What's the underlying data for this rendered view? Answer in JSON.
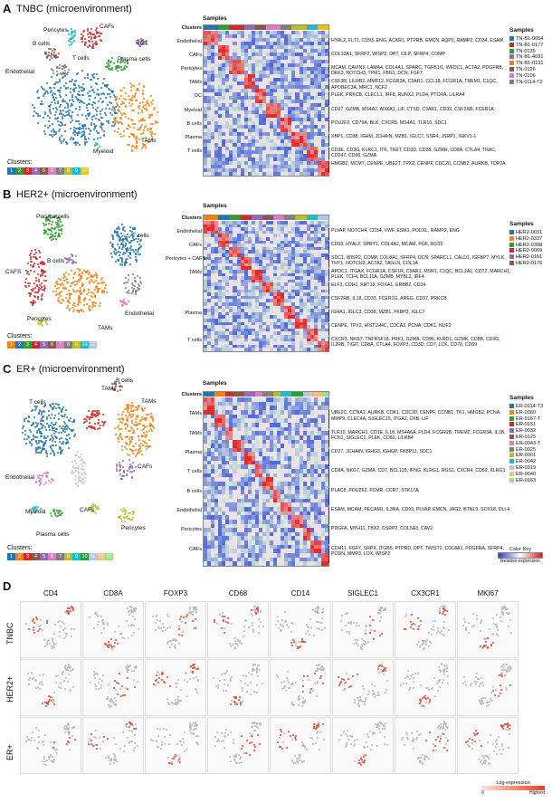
{
  "panels": {
    "A": {
      "letter": "A",
      "title": "TNBC (microenvironment)",
      "cluster_labels": [
        "Pericytes",
        "CAFs",
        "DCs",
        "B cells",
        "T cells",
        "Plasma cells",
        "Endothelial",
        "Myeloid",
        "TAMs"
      ],
      "clusters_title": "Clusters:",
      "cluster_ids": [
        "1",
        "2",
        "3",
        "4",
        "5",
        "6",
        "7",
        "8",
        "9",
        "10"
      ],
      "cluster_colors": [
        "#1f77b4",
        "#2ca02c",
        "#d62728",
        "#9467bd",
        "#8c564b",
        "#e377c2",
        "#7f7f7f",
        "#bcbd22",
        "#17becf",
        "#ffbf00"
      ],
      "heatmap_rows": [
        {
          "label": "Clusters",
          "genes": ""
        },
        {
          "label": "Endothelial",
          "genes": "HYAL2, FLT1, CD93, ENG, ACKR1, PTPRB, EMCN, AQP1, RAMP2, CD34, ESAM"
        },
        {
          "label": "CAFs",
          "genes": "COL10A1, SFRP2, WISP2, DPT, CILP, SFRP4, COMP"
        },
        {
          "label": "Pericytes",
          "genes": "MCAM, CAVIN3, LAMA4, COL4A1, SPARC, TGFB1I1, WFDC1, ACTA2, PDGFRB, DKK3, NOTCH3, TPM1, FBN1, DCN, FGF7"
        },
        {
          "label": "TAMs",
          "genes": "CSF3R, LILRB2, MMP12, FCGR3A, C5AR1, CCL18, FCGR1A, TREM1, C1QC, APOBEC3A, MRC1, NCF2"
        },
        {
          "label": "DC",
          "genes": "PLEK, PRKCB, CLECL1, IRF8, RUNX2, PLD4, PTCRA, LILRA4"
        },
        {
          "label": "Myeloid",
          "genes": "CD37, GZMB, MS4A2, ANXA1, LIF, CTSD, C3AR1, CD33, CSF2RB, FCER1A"
        },
        {
          "label": "B cells",
          "genes": "POU2F2, CD79A, BLK, CXCR5, MS4A1, TLR10, SDC1"
        },
        {
          "label": "Plasma",
          "genes": "XBP1, CD38, IGHM, JCHAIN, MZB1, IGLC7, SSR4, JSRP1, IGKV1-1"
        },
        {
          "label": "T cells",
          "genes": "CD3E, CD3G, KLRC1, ITK, TIGIT, CD3D, CD28, GZMH, CD8A, CTLA4, TRAC, CD247, CD96, GZMA"
        },
        {
          "label": "",
          "genes": "HMGB2, MCM7, CENPE, UBE2T, TPX2, CENPF, CDC20, CCNB2, AURKB, TOP2A"
        }
      ],
      "samples_title": "Samples",
      "samples": [
        "TN-B1-0054",
        "TN-B1-0177",
        "TN-0135",
        "TN-B1-4031",
        "TN-B1-0131",
        "TN-0126",
        "TN-0106",
        "TN-0114-T2"
      ],
      "sample_colors": [
        "#1f77b4",
        "#d62728",
        "#2ca02c",
        "#9467bd",
        "#ff7f0e",
        "#8c564b",
        "#e377c2",
        "#7f7f7f"
      ]
    },
    "B": {
      "letter": "B",
      "title": "HER2+ (microenvironment)",
      "cluster_labels": [
        "Plasma cells",
        "T cells",
        "CAFS",
        "B cells",
        "Pericytes",
        "TAMs",
        "Endothelial"
      ],
      "clusters_title": "Clusters:",
      "cluster_ids": [
        "1",
        "2",
        "3",
        "4",
        "5",
        "6",
        "7",
        "8",
        "9",
        "10",
        "11"
      ],
      "cluster_colors": [
        "#ff7f0e",
        "#1f77b4",
        "#2ca02c",
        "#d62728",
        "#9467bd",
        "#8c564b",
        "#e377c2",
        "#7f7f7f",
        "#bcbd22",
        "#17becf",
        "#aec7e8"
      ],
      "heatmap_rows": [
        {
          "label": "Clusters",
          "genes": ""
        },
        {
          "label": "Endothelial",
          "genes": "PLVAP, NOTCH4, CD34, VWF, ESM1, PODXL, RAMP2, ENG"
        },
        {
          "label": "CAFs",
          "genes": "CD93, HYAL2, SPRY1, COL4A2, MCAM, PGF, RGS5"
        },
        {
          "label": "Pericytes + CAFS",
          "genes": "SDC1, WISP2, COMP, COL8A1, SFRP4, DCN; SPARCL1, CALD1, IGFBP7, MYLK, THY1, NOTCH3, ACTA2, TAGLN, COL1A"
        },
        {
          "label": "TAMs",
          "genes": "APOC1, ITGAX, FCGR1A, CSF1R, C5AR1, MSR1, C1QC, BCL2A1, CD72, MARCH1, PLEK, TCF4, BCL11A, GZMB, MYBL2, IRF4"
        },
        {
          "label": "",
          "genes": "ELF3, CDH1, KRT18, FOXA1, ERBB2, CD24"
        },
        {
          "label": "",
          "genes": "CSF2RB, IL18, CD33, FCER1G, AREG, CD37, PRKCB"
        },
        {
          "label": "Plasma",
          "genes": "IGHA1, IGLC3, CD38, MZB1, FKBP2, IGLC7"
        },
        {
          "label": "",
          "genes": "CENPE, TPX2, HIST1H4C, CDCA3, PCNA, CDK1, NUF2"
        },
        {
          "label": "T cells",
          "genes": "CXCR3, NKG7, TNFRSF18, PRF1, GZMA, CD96, KLRD1, GZMK, CD8B, CD3G, IL2RB, TIGIT, CD8A, CTLA4, FOXP3, CD3D, CD7, LCK, CD70, CD69"
        }
      ],
      "samples_title": "Samples",
      "samples": [
        "HER2-0031",
        "HER2-0337",
        "HER2-0308",
        "HER2-0069",
        "HER2-0161",
        "HER2-0176"
      ],
      "sample_colors": [
        "#1f77b4",
        "#ff7f0e",
        "#2ca02c",
        "#d62728",
        "#9467bd",
        "#8c564b"
      ]
    },
    "C": {
      "letter": "C",
      "title": "ER+ (microenvironment)",
      "cluster_labels": [
        "T cells",
        "TAMs",
        "B cells",
        "TAMs",
        "Endothelial",
        "CAFs",
        "Myeloid",
        "CAFs",
        "Plasma cells",
        "Pericytes"
      ],
      "clusters_title": "Clusters:",
      "cluster_ids": [
        "1",
        "2",
        "3",
        "4",
        "5",
        "6",
        "7",
        "8",
        "9",
        "10",
        "11",
        "12",
        "13"
      ],
      "cluster_colors": [
        "#1f77b4",
        "#ff7f0e",
        "#d62728",
        "#8c564b",
        "#9467bd",
        "#e377c2",
        "#7f7f7f",
        "#bcbd22",
        "#17becf",
        "#2ca02c",
        "#aec7e8",
        "#ffbb78",
        "#98df8a"
      ],
      "heatmap_rows": [
        {
          "label": "Clusters",
          "genes": ""
        },
        {
          "label": "TAMs",
          "genes": "UBE2C, CCNA2, AURKB, CDK1, CDC20, CENPF, CCNB1, TK1, HMGB2, PCNA; MMP9, CLEC4A, SIGLEC15, ITGA2, CKB, LIF"
        },
        {
          "label": "TAMs",
          "genes": "TLR10, MARCH1, CD1E, IL18, MS4A6A, PLD4, FCGR2B, TREM2, FCGR3A, IL1B, FCN1, SIGLEC1, PLEK, CD82, LILRB4"
        },
        {
          "label": "Plasma",
          "genes": "CD27, JCHAIN, IGHG3, IGHGP, FKBP11, SDC1"
        },
        {
          "label": "T cells",
          "genes": "CD8A, NKG7, GZMA, CD7, BCL11B, IFNG, KLRG1, RGS1, CXCR4, CD69, KLRG1"
        },
        {
          "label": "B cells",
          "genes": "PLAC8, POU2F2, FCMR, CCR7, STK17A"
        },
        {
          "label": "Endothelial",
          "genes": "ESAM, MCAM, PECAM1, IL3RA, CD93, PLVAP, EMCN, JAG2, BTNL9, SOX18, DLL4"
        },
        {
          "label": "Pericytes",
          "genes": "PDGFA, MYH11, TBX2, CSRP2, COL5A3, CAV2"
        },
        {
          "label": "CAFs",
          "genes": "CDH11, FGF7, SRPX, ITGB5, PTPRD, DPT, TWIST2, COL8A1, PDGFRA, SFRP4, PODN, MMP3, LOX, WISP2"
        }
      ],
      "samples_title": "Samples",
      "samples": [
        "ER-0114-T3",
        "ER-0360",
        "ER-0167-T",
        "ER-0151",
        "ER-0032",
        "ER-0125",
        "ER-0043-T",
        "ER-0025",
        "ER-0001",
        "ER-0042",
        "ER-0319",
        "ER-0040",
        "ER-0163"
      ],
      "sample_colors": [
        "#1f77b4",
        "#ff7f0e",
        "#2ca02c",
        "#d62728",
        "#9467bd",
        "#8c564b",
        "#e377c2",
        "#7f7f7f",
        "#bcbd22",
        "#17becf",
        "#aec7e8",
        "#ffbb78",
        "#98df8a"
      ],
      "color_key_title": "Color Key",
      "color_key_sub": "Relative expression"
    },
    "D": {
      "letter": "D",
      "genes": [
        "CD4",
        "CD8A",
        "FOXP3",
        "CD68",
        "CD14",
        "SIGLEC1",
        "CX3CR1",
        "MKI67"
      ],
      "rows": [
        "TNBC",
        "HER2+",
        "ER+"
      ],
      "legend_title": "Log expression",
      "legend_low": "0",
      "legend_high": "Highest"
    }
  }
}
